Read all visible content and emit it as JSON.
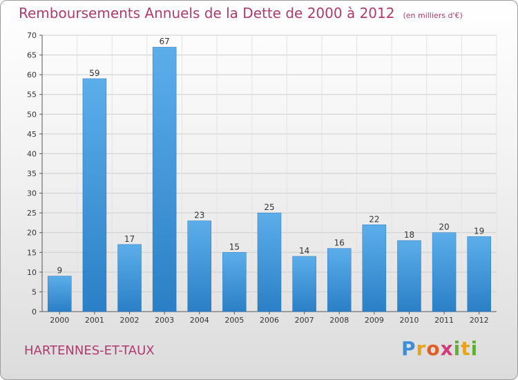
{
  "chart_data": {
    "type": "bar",
    "title": "Remboursements Annuels de la Dette de 2000 à 2012",
    "unit": "(en milliers d'€)",
    "categories": [
      "2000",
      "2001",
      "2002",
      "2003",
      "2004",
      "2005",
      "2006",
      "2007",
      "2008",
      "2009",
      "2010",
      "2011",
      "2012"
    ],
    "values": [
      9,
      59,
      17,
      67,
      23,
      15,
      25,
      14,
      16,
      22,
      18,
      20,
      19
    ],
    "ylim": [
      0,
      70
    ],
    "yticks": [
      0,
      5,
      10,
      15,
      20,
      25,
      30,
      35,
      40,
      45,
      50,
      55,
      60,
      65,
      70
    ],
    "grid": true,
    "bar_color": "#3a8fd6"
  },
  "footer": {
    "place": "HARTENNES-ET-TAUX"
  },
  "logo": {
    "text": "Proxiti"
  }
}
